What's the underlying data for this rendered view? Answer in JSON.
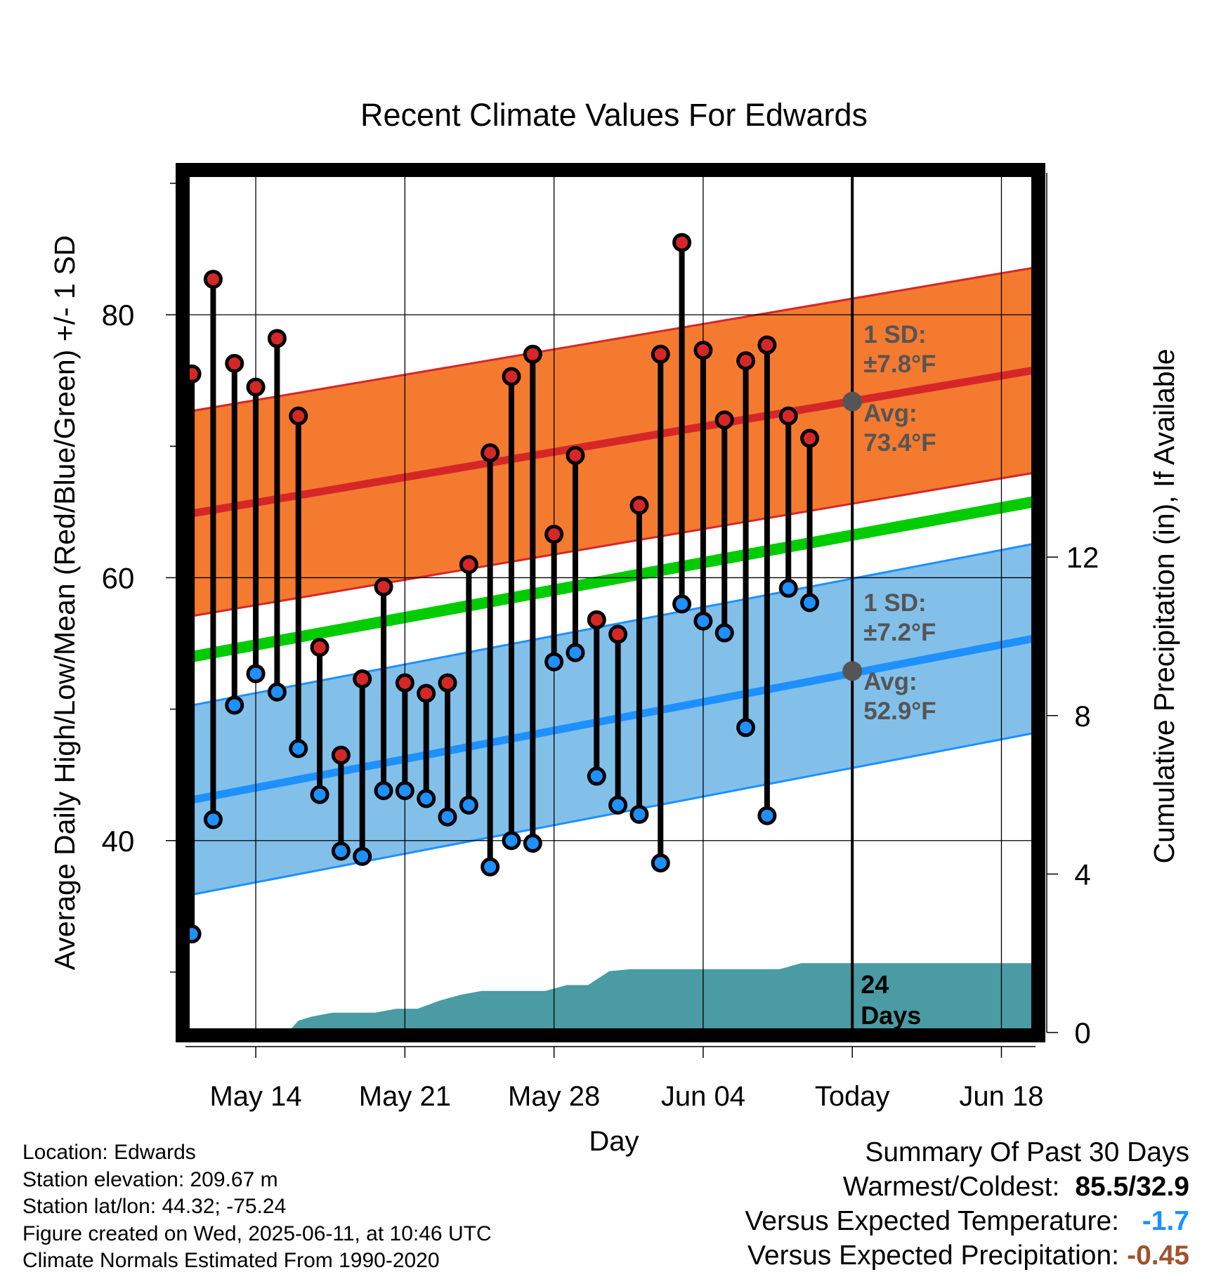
{
  "title": "Recent Climate Values For Edwards",
  "colors": {
    "high_point": "#D62728",
    "low_point": "#1E90FF",
    "high_band": "#F47A30",
    "high_avg": "#D62728",
    "low_band": "#82C0EA",
    "low_avg": "#1E90FF",
    "mean_line": "#00CC00",
    "precip": "#4A9BA3",
    "annotation": "#555555"
  },
  "annotations": {
    "high_sd": [
      "1 SD:",
      "±7.8°F"
    ],
    "high_avg": [
      "Avg:",
      "73.4°F"
    ],
    "low_sd": [
      "1 SD:",
      "±7.2°F"
    ],
    "low_avg": [
      "Avg:",
      "52.9°F"
    ],
    "days": [
      "24",
      "Days"
    ]
  },
  "info": {
    "location": "Location: Edwards",
    "elevation": "Station elevation: 209.67 m",
    "latlon": "Station lat/lon: 44.32; -75.24",
    "created": "Figure created on Wed, 2025-06-11, at 10:46 UTC",
    "normals": "Climate Normals Estimated From 1990-2020"
  },
  "summary": {
    "title": "Summary Of Past 30 Days",
    "warm_label": "Warmest/Coldest:",
    "warm_value": "85.5/32.9",
    "temp_label": "Versus Expected Temperature:",
    "temp_value": "-1.7",
    "precip_label": "Versus Expected Precipitation:",
    "precip_value": "-0.45"
  },
  "chart_data": {
    "type": "line",
    "title": "Recent Climate Values For Edwards",
    "xlabel": "Day",
    "ylabel_left": "Average Daily High/Low/Mean (Red/Blue/Green) +/- 1 SD",
    "ylabel_right": "Cumulative Precipitation (in), If Available",
    "x_ticks": [
      "May 14",
      "May 21",
      "May 28",
      "Jun 04",
      "Today",
      "Jun 18"
    ],
    "x_tick_days": [
      14,
      21,
      28,
      35,
      42,
      49
    ],
    "x_range": [
      10.7,
      50.6
    ],
    "today_day": 42,
    "y_left_range": [
      25.4,
      90.8
    ],
    "y_left_ticks": [
      40,
      60,
      80
    ],
    "y_left_minor_ticks": [
      30,
      50,
      70,
      90
    ],
    "y_right_range": [
      0,
      21.7
    ],
    "y_right_ticks": [
      0,
      4,
      8,
      12
    ],
    "grid": true,
    "daily": {
      "days": [
        11,
        12,
        13,
        14,
        15,
        16,
        17,
        18,
        19,
        20,
        21,
        22,
        23,
        24,
        25,
        26,
        27,
        28,
        29,
        30,
        31,
        32,
        33,
        34,
        35,
        36,
        37,
        38,
        39,
        40,
        41
      ],
      "high": [
        75.5,
        82.7,
        76.3,
        74.5,
        78.2,
        72.3,
        54.7,
        46.5,
        52.3,
        59.3,
        52.0,
        51.2,
        52.0,
        61.0,
        69.5,
        75.3,
        77.0,
        63.3,
        69.3,
        56.8,
        55.7,
        65.5,
        77.0,
        85.5,
        77.3,
        72.0,
        76.5,
        77.7,
        72.3,
        70.6,
        null
      ],
      "low": [
        32.9,
        41.6,
        50.3,
        52.7,
        51.3,
        47.0,
        43.5,
        39.2,
        38.8,
        43.8,
        43.8,
        43.2,
        41.8,
        42.7,
        38.0,
        40.0,
        39.8,
        53.6,
        54.3,
        44.9,
        42.7,
        42.0,
        38.3,
        58.0,
        56.7,
        55.8,
        48.6,
        41.9,
        59.2,
        58.1,
        null
      ]
    },
    "normal_high": {
      "start": 64.8,
      "end": 75.8,
      "sd": 7.8
    },
    "normal_low": {
      "start": 43.0,
      "end": 55.4,
      "sd": 7.2
    },
    "normal_mean": {
      "start": 53.9,
      "end": 65.8
    },
    "today_normal_high": 73.4,
    "today_normal_low": 52.9,
    "precip_cumulative": {
      "days": [
        15.5,
        16.0,
        16.6,
        17.6,
        18.6,
        19.6,
        20.6,
        21.6,
        22.6,
        23.6,
        24.6,
        25.6,
        26.6,
        27.6,
        28.6,
        29.6,
        30.6,
        31.6,
        32.6,
        33.6,
        34.6,
        35.6,
        36.6,
        37.6,
        38.6,
        39.6,
        40.6,
        41.6,
        50.6
      ],
      "values": [
        0.0,
        0.3,
        0.4,
        0.5,
        0.5,
        0.5,
        0.6,
        0.6,
        0.8,
        0.95,
        1.05,
        1.05,
        1.05,
        1.05,
        1.2,
        1.2,
        1.55,
        1.6,
        1.6,
        1.6,
        1.6,
        1.6,
        1.6,
        1.6,
        1.6,
        1.75,
        1.75,
        1.75,
        1.75
      ]
    }
  }
}
